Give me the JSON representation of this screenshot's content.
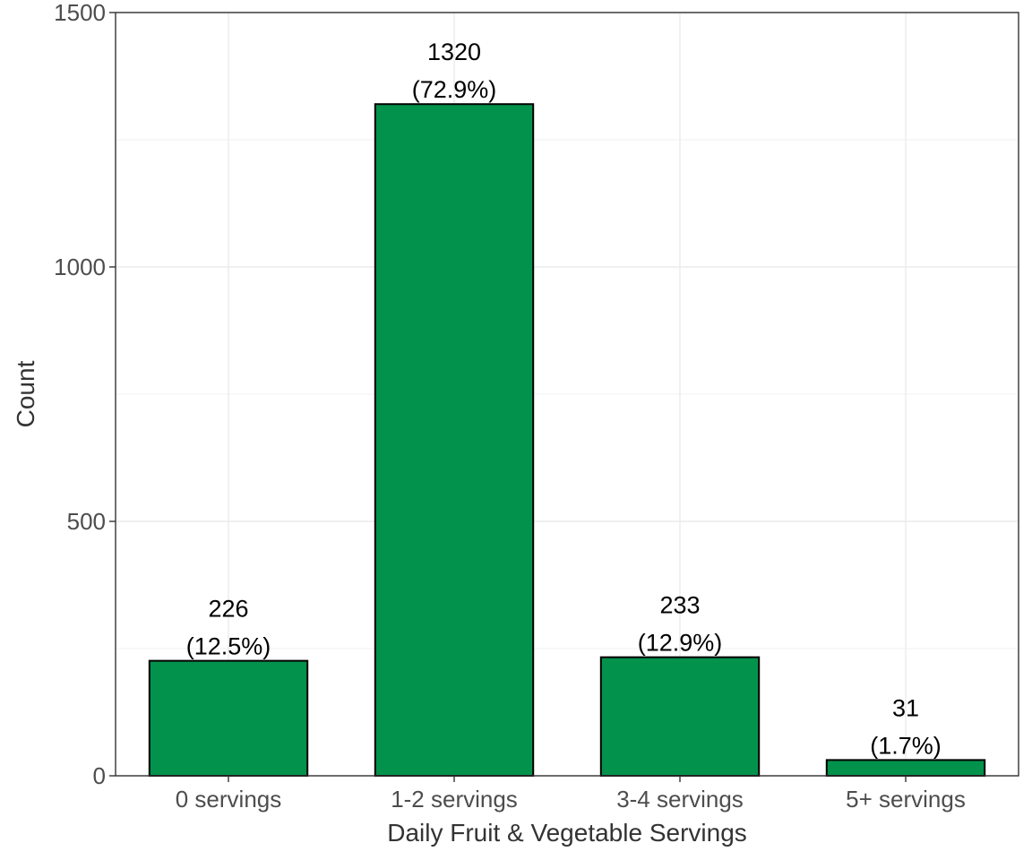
{
  "chart_data": {
    "type": "bar",
    "categories": [
      "0 servings",
      "1-2 servings",
      "3-4 servings",
      "5+ servings"
    ],
    "values": [
      226,
      1320,
      233,
      31
    ],
    "labels": [
      [
        "226",
        "(12.5%)"
      ],
      [
        "1320",
        "(72.9%)"
      ],
      [
        "233",
        "(12.9%)"
      ],
      [
        "31",
        "(1.7%)"
      ]
    ],
    "xlabel": "Daily Fruit & Vegetable Servings",
    "ylabel": "Count",
    "ylim": [
      0,
      1500
    ],
    "yticks": [
      0,
      500,
      1000,
      1500
    ],
    "grid": true,
    "bar_color": "#03924B"
  }
}
